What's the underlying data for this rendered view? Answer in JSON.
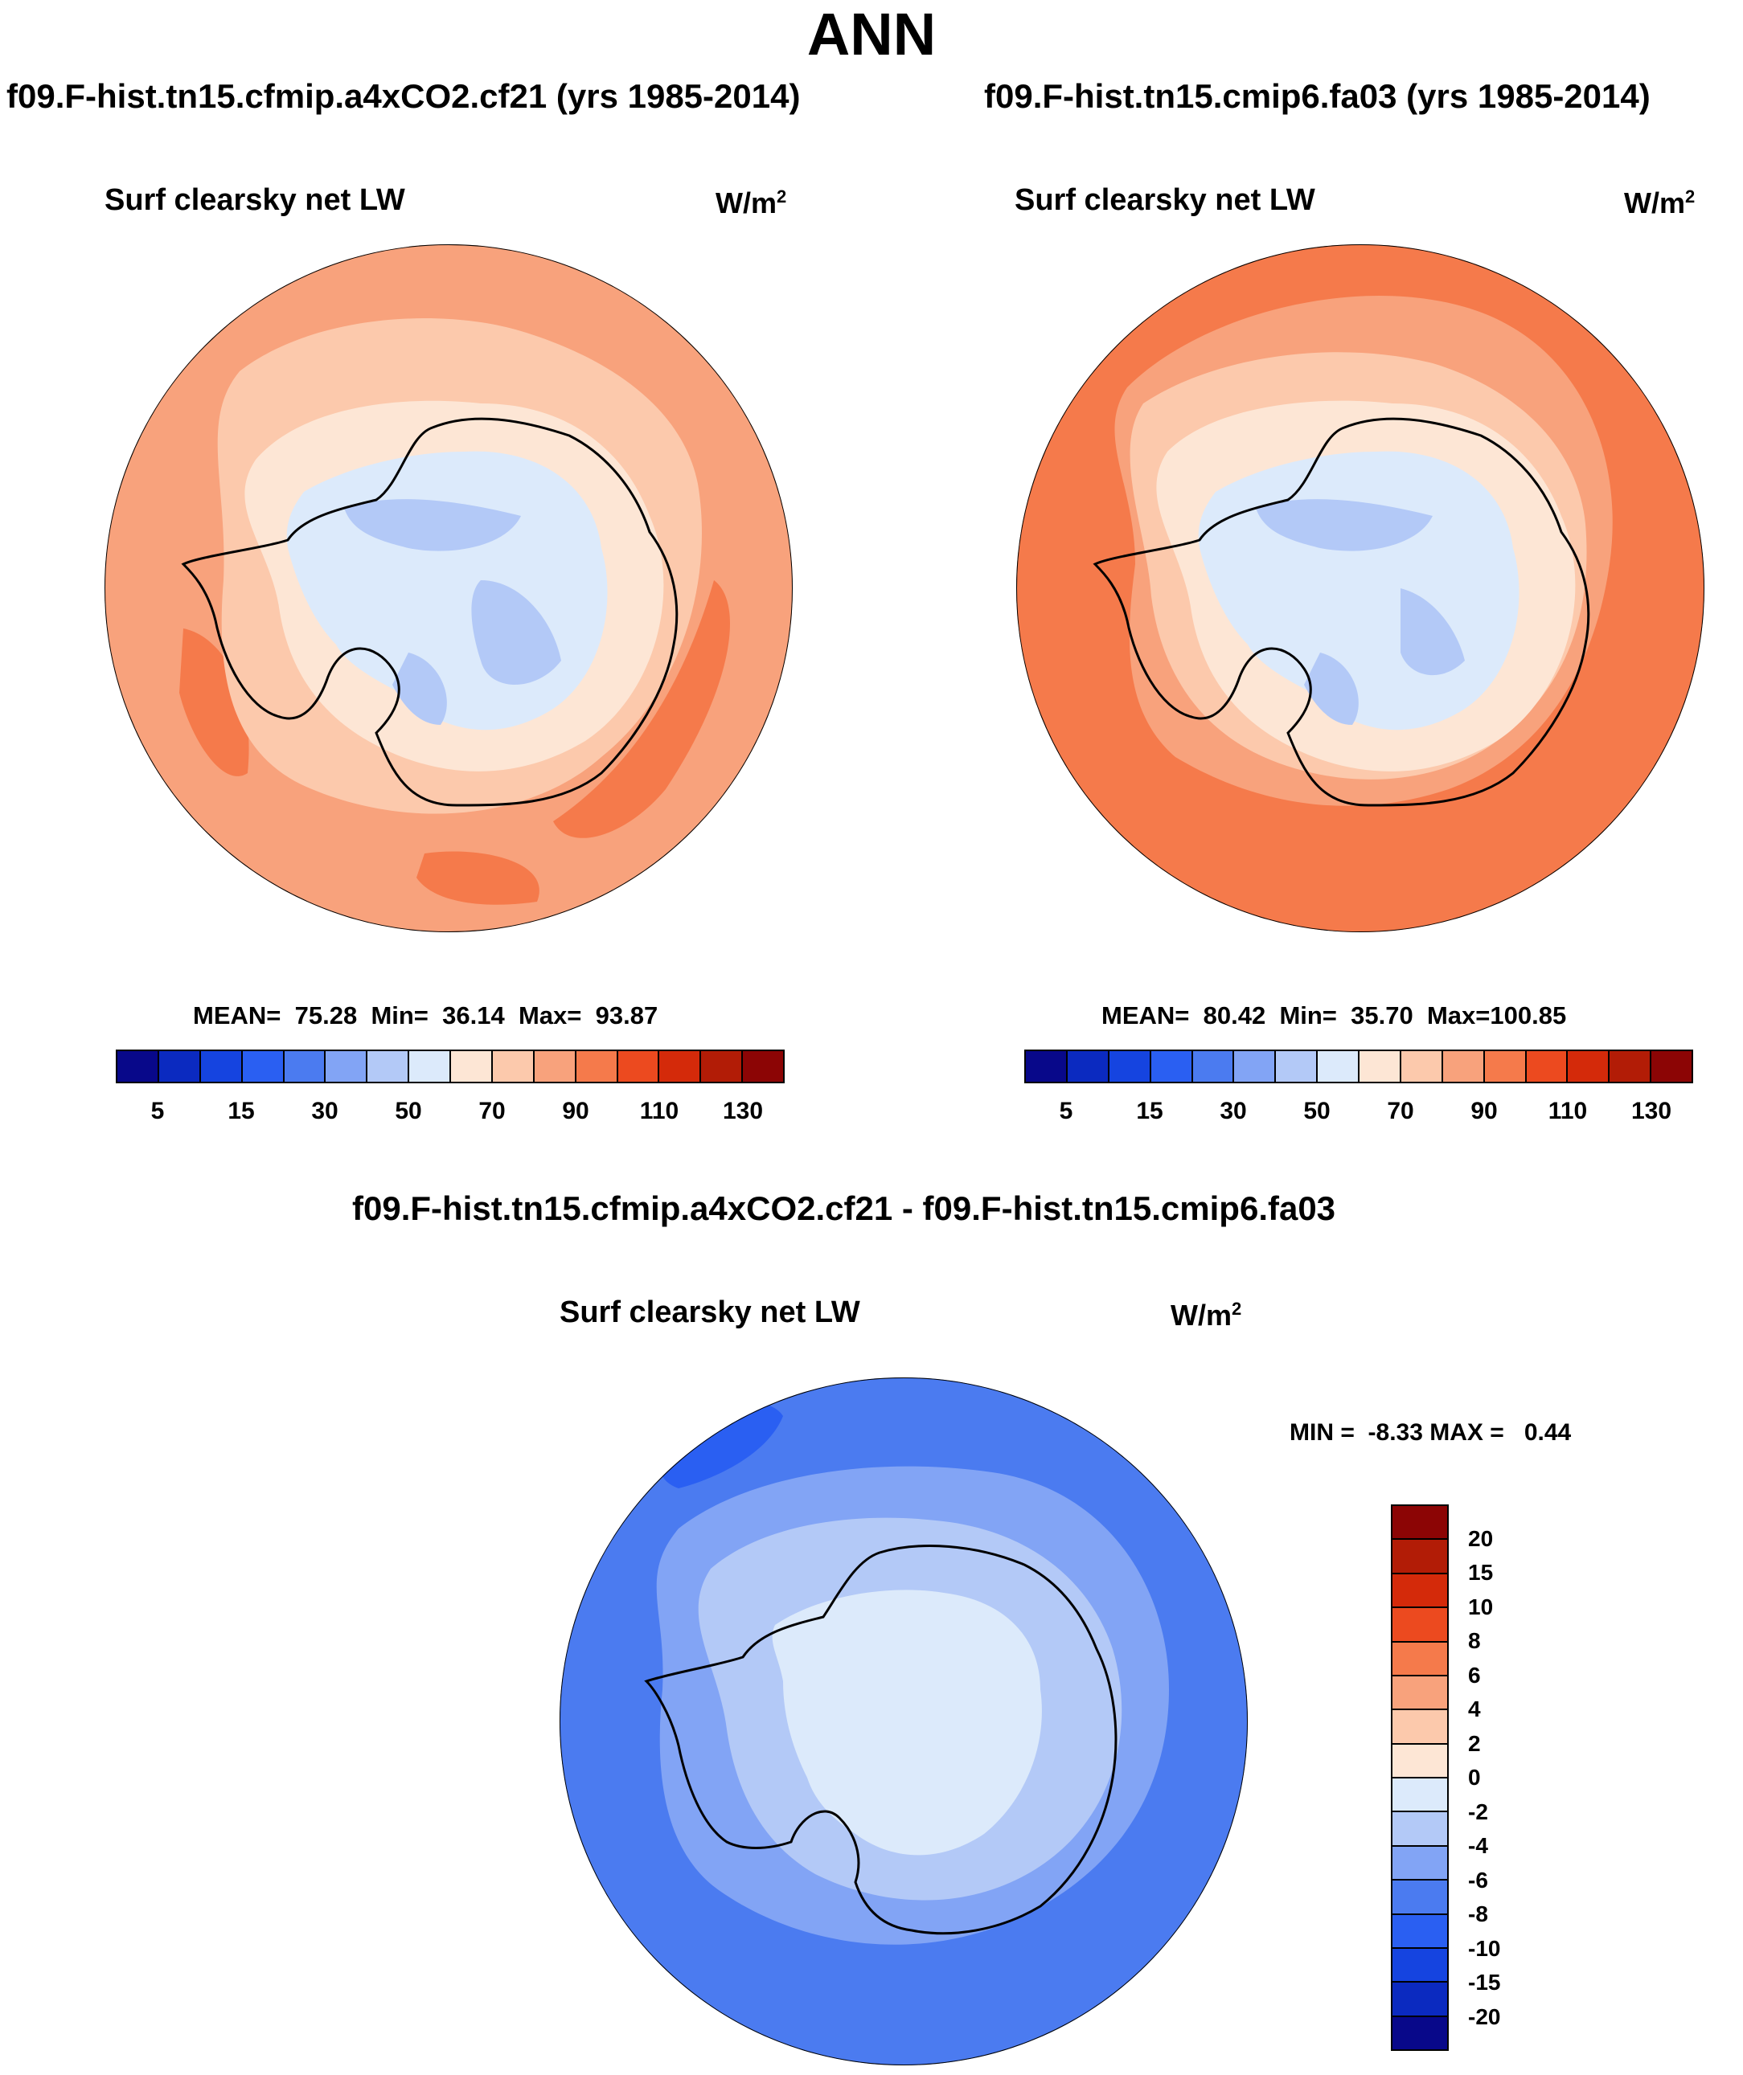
{
  "title": "ANN",
  "panels": [
    {
      "case": "f09.F-hist.tn15.cfmip.a4xCO2.cf21 (yrs 1985-2014)",
      "variable": "Surf clearsky net LW",
      "units_base": "W/m",
      "units_exp": "2",
      "mean_label": "MEAN=",
      "mean": "75.28",
      "min_label": "Min=",
      "min": "36.14",
      "max_label": "Max=",
      "max": "93.87"
    },
    {
      "case": "f09.F-hist.tn15.cmip6.fa03 (yrs 1985-2014)",
      "variable": "Surf clearsky net LW",
      "units_base": "W/m",
      "units_exp": "2",
      "mean_label": "MEAN=",
      "mean": "80.42",
      "min_label": "Min=",
      "min": "35.70",
      "max_label": "Max=",
      "max": "100.85"
    }
  ],
  "diff": {
    "title": "f09.F-hist.tn15.cfmip.a4xCO2.cf21 - f09.F-hist.tn15.cmip6.fa03",
    "variable": "Surf clearsky net LW",
    "units_base": "W/m",
    "units_exp": "2",
    "min_label": "MIN =",
    "min": "-8.33",
    "max_label": "MAX =",
    "max": "0.44"
  },
  "colorbar_abs": {
    "colors": [
      "#08088a",
      "#0b2ac0",
      "#1544e0",
      "#2a5ff2",
      "#4b7bf0",
      "#82a4f5",
      "#b3c9f7",
      "#dceafb",
      "#fde6d5",
      "#fcc9ac",
      "#f8a27c",
      "#f57a4b",
      "#ec4a1f",
      "#d42a0a",
      "#b21c06",
      "#8c0505"
    ],
    "tick_labels": [
      "5",
      "15",
      "30",
      "50",
      "70",
      "90",
      "110",
      "130"
    ]
  },
  "colorbar_diff": {
    "colors": [
      "#8c0505",
      "#b21c06",
      "#d42a0a",
      "#ec4a1f",
      "#f57a4b",
      "#f8a27c",
      "#fcc9ac",
      "#fde6d5",
      "#dceafb",
      "#b3c9f7",
      "#82a4f5",
      "#4b7bf0",
      "#2a5ff2",
      "#1544e0",
      "#0b2ac0",
      "#08088a"
    ],
    "tick_labels": [
      "20",
      "15",
      "10",
      "8",
      "6",
      "4",
      "2",
      "0",
      "-2",
      "-4",
      "-6",
      "-8",
      "-10",
      "-15",
      "-20"
    ]
  },
  "map_colors": {
    "a_ocean": "#f8a27c",
    "a_band": "#fcc9ac",
    "a_coast": "#fde6d5",
    "a_land": "#dceafb",
    "a_interior": "#b3c9f7",
    "a_hot": "#f57a4b",
    "b_ocean": "#f57a4b",
    "b_band": "#f8a27c",
    "b_band2": "#fcc9ac",
    "b_coast": "#fde6d5",
    "b_land": "#dceafb",
    "b_interior": "#b3c9f7",
    "d_ocean": "#4b7bf0",
    "d_band": "#82a4f5",
    "d_coast": "#b3c9f7",
    "d_land": "#dceafb",
    "d_low": "#2a5ff2"
  }
}
